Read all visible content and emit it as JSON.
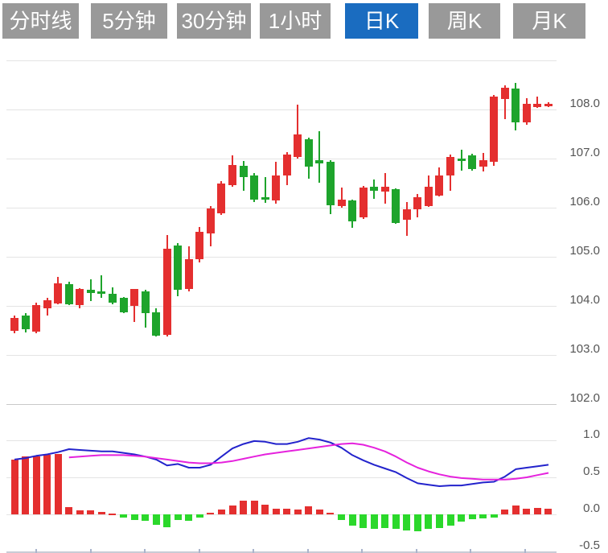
{
  "toolbar": {
    "tabs": [
      {
        "label": "分时线",
        "active": false
      },
      {
        "label": "5分钟",
        "active": false
      },
      {
        "label": "30分钟",
        "active": false
      },
      {
        "label": "1小时",
        "active": false
      },
      {
        "label": "日K",
        "active": true
      },
      {
        "label": "周K",
        "active": false
      },
      {
        "label": "月K",
        "active": false
      }
    ]
  },
  "colors": {
    "up": "#e42f2f",
    "down": "#1ea42c",
    "hist_up": "#e42f2f",
    "hist_down": "#2bd82b",
    "dif_line": "#2323cc",
    "dea_line": "#e522dd",
    "tab_bg": "#999999",
    "tab_active_bg": "#1a6cc0",
    "tab_text": "#ffffff",
    "grid": "#e4e4e4",
    "grid_dark": "#c9c9c9",
    "axis_label": "#555555",
    "x_axis": "#c9ccd6",
    "x_tick": "#aab4cc"
  },
  "chart_data": [
    {
      "type": "candlestick",
      "panel": "price",
      "legend_position": "none",
      "grid": true,
      "y_axis": {
        "min": 101.8,
        "max": 109.1,
        "ticks": [
          {
            "label": "",
            "value": 109.0
          },
          {
            "label": "108.0",
            "value": 108.0
          },
          {
            "label": "107.0",
            "value": 107.0
          },
          {
            "label": "106.0",
            "value": 106.0
          },
          {
            "label": "105.0",
            "value": 105.0
          },
          {
            "label": "104.0",
            "value": 104.0
          },
          {
            "label": "103.0",
            "value": 103.0
          },
          {
            "label": "102.0",
            "value": 102.0
          }
        ]
      },
      "candles": [
        {
          "o": 103.5,
          "h": 103.8,
          "l": 103.45,
          "c": 103.75
        },
        {
          "o": 103.8,
          "h": 103.86,
          "l": 103.46,
          "c": 103.52
        },
        {
          "o": 103.48,
          "h": 104.06,
          "l": 103.45,
          "c": 104.02
        },
        {
          "o": 103.95,
          "h": 104.16,
          "l": 103.8,
          "c": 104.11
        },
        {
          "o": 104.05,
          "h": 104.59,
          "l": 104.04,
          "c": 104.46
        },
        {
          "o": 104.44,
          "h": 104.49,
          "l": 104.01,
          "c": 104.03
        },
        {
          "o": 104.02,
          "h": 104.36,
          "l": 103.95,
          "c": 104.34
        },
        {
          "o": 104.33,
          "h": 104.54,
          "l": 104.1,
          "c": 104.26
        },
        {
          "o": 104.3,
          "h": 104.62,
          "l": 104.16,
          "c": 104.25
        },
        {
          "o": 104.25,
          "h": 104.38,
          "l": 104.03,
          "c": 104.07
        },
        {
          "o": 104.16,
          "h": 104.18,
          "l": 103.85,
          "c": 103.87
        },
        {
          "o": 104.0,
          "h": 104.35,
          "l": 103.67,
          "c": 104.34
        },
        {
          "o": 104.3,
          "h": 104.32,
          "l": 103.56,
          "c": 103.85
        },
        {
          "o": 103.87,
          "h": 103.95,
          "l": 103.37,
          "c": 103.39
        },
        {
          "o": 103.41,
          "h": 105.44,
          "l": 103.38,
          "c": 105.16
        },
        {
          "o": 105.23,
          "h": 105.28,
          "l": 104.2,
          "c": 104.33
        },
        {
          "o": 104.34,
          "h": 105.22,
          "l": 104.3,
          "c": 104.95
        },
        {
          "o": 104.95,
          "h": 105.6,
          "l": 104.88,
          "c": 105.51
        },
        {
          "o": 105.48,
          "h": 106.03,
          "l": 105.22,
          "c": 105.98
        },
        {
          "o": 105.89,
          "h": 106.54,
          "l": 105.85,
          "c": 106.49
        },
        {
          "o": 106.46,
          "h": 107.07,
          "l": 106.43,
          "c": 106.87
        },
        {
          "o": 106.85,
          "h": 106.95,
          "l": 106.34,
          "c": 106.62
        },
        {
          "o": 106.66,
          "h": 106.7,
          "l": 106.11,
          "c": 106.16
        },
        {
          "o": 106.22,
          "h": 106.62,
          "l": 106.1,
          "c": 106.18
        },
        {
          "o": 106.15,
          "h": 106.93,
          "l": 106.08,
          "c": 106.66
        },
        {
          "o": 106.66,
          "h": 107.13,
          "l": 106.46,
          "c": 107.08
        },
        {
          "o": 107.03,
          "h": 108.1,
          "l": 107.0,
          "c": 107.49
        },
        {
          "o": 107.39,
          "h": 107.43,
          "l": 106.59,
          "c": 106.84
        },
        {
          "o": 106.97,
          "h": 107.56,
          "l": 106.51,
          "c": 106.9
        },
        {
          "o": 106.93,
          "h": 106.96,
          "l": 105.87,
          "c": 106.05
        },
        {
          "o": 106.03,
          "h": 106.41,
          "l": 106.0,
          "c": 106.16
        },
        {
          "o": 106.15,
          "h": 106.17,
          "l": 105.59,
          "c": 105.72
        },
        {
          "o": 105.8,
          "h": 106.44,
          "l": 105.77,
          "c": 106.41
        },
        {
          "o": 106.42,
          "h": 106.57,
          "l": 106.18,
          "c": 106.35
        },
        {
          "o": 106.33,
          "h": 106.7,
          "l": 106.08,
          "c": 106.43
        },
        {
          "o": 106.38,
          "h": 106.4,
          "l": 105.67,
          "c": 105.69
        },
        {
          "o": 105.75,
          "h": 106.11,
          "l": 105.43,
          "c": 105.97
        },
        {
          "o": 105.97,
          "h": 106.28,
          "l": 105.8,
          "c": 106.21
        },
        {
          "o": 106.03,
          "h": 106.66,
          "l": 106.01,
          "c": 106.43
        },
        {
          "o": 106.25,
          "h": 106.82,
          "l": 106.23,
          "c": 106.66
        },
        {
          "o": 106.66,
          "h": 107.08,
          "l": 106.34,
          "c": 107.03
        },
        {
          "o": 107.0,
          "h": 107.18,
          "l": 106.75,
          "c": 106.95
        },
        {
          "o": 107.07,
          "h": 107.1,
          "l": 106.75,
          "c": 106.79
        },
        {
          "o": 106.84,
          "h": 107.11,
          "l": 106.74,
          "c": 106.97
        },
        {
          "o": 106.93,
          "h": 108.3,
          "l": 106.85,
          "c": 108.26
        },
        {
          "o": 108.21,
          "h": 108.49,
          "l": 107.8,
          "c": 108.44
        },
        {
          "o": 108.43,
          "h": 108.54,
          "l": 107.57,
          "c": 107.74
        },
        {
          "o": 107.74,
          "h": 108.23,
          "l": 107.69,
          "c": 108.11
        },
        {
          "o": 108.05,
          "h": 108.26,
          "l": 108.03,
          "c": 108.11
        },
        {
          "o": 108.08,
          "h": 108.15,
          "l": 108.05,
          "c": 108.12
        }
      ]
    },
    {
      "type": "bar",
      "panel": "macd-indicator",
      "grid": true,
      "y_axis": {
        "min": -0.5,
        "max": 1.0,
        "ticks": [
          {
            "label": "1.0",
            "value": 1.0
          },
          {
            "label": "0.5",
            "value": 0.5
          },
          {
            "label": "0.0",
            "value": 0.0
          },
          {
            "label": "-0.5",
            "value": -0.5
          }
        ]
      },
      "histogram": [
        0.74,
        0.78,
        0.78,
        0.8,
        0.81,
        0.1,
        0.05,
        0.05,
        0.03,
        0.01,
        -0.04,
        -0.08,
        -0.09,
        -0.14,
        -0.17,
        -0.08,
        -0.09,
        -0.04,
        0.02,
        0.06,
        0.12,
        0.18,
        0.18,
        0.13,
        0.08,
        0.08,
        0.07,
        0.11,
        0.06,
        0.02,
        -0.08,
        -0.15,
        -0.18,
        -0.2,
        -0.18,
        -0.2,
        -0.22,
        -0.23,
        -0.2,
        -0.18,
        -0.15,
        -0.1,
        -0.07,
        -0.05,
        -0.04,
        0.07,
        0.12,
        0.08,
        0.09,
        0.08
      ],
      "series": [
        {
          "name": "DIF",
          "color_key": "dif_line",
          "values": [
            0.74,
            0.76,
            0.79,
            0.81,
            0.84,
            0.88,
            0.87,
            0.86,
            0.85,
            0.85,
            0.83,
            0.81,
            0.78,
            0.74,
            0.66,
            0.68,
            0.63,
            0.63,
            0.67,
            0.78,
            0.89,
            0.95,
            0.99,
            0.98,
            0.95,
            0.95,
            0.98,
            1.03,
            1.01,
            0.97,
            0.9,
            0.8,
            0.73,
            0.67,
            0.62,
            0.57,
            0.49,
            0.42,
            0.4,
            0.38,
            0.39,
            0.39,
            0.41,
            0.43,
            0.44,
            0.51,
            0.61,
            0.63,
            0.65,
            0.67
          ]
        },
        {
          "name": "DEA",
          "color_key": "dea_line",
          "values": [
            null,
            null,
            null,
            null,
            null,
            0.77,
            0.78,
            0.79,
            0.8,
            0.8,
            0.8,
            0.79,
            0.78,
            0.76,
            0.74,
            0.72,
            0.7,
            0.69,
            0.69,
            0.7,
            0.72,
            0.75,
            0.78,
            0.81,
            0.83,
            0.85,
            0.87,
            0.89,
            0.91,
            0.93,
            0.95,
            0.96,
            0.94,
            0.9,
            0.85,
            0.78,
            0.7,
            0.63,
            0.58,
            0.54,
            0.51,
            0.49,
            0.48,
            0.47,
            0.47,
            0.47,
            0.48,
            0.5,
            0.53,
            0.56
          ]
        }
      ]
    }
  ]
}
